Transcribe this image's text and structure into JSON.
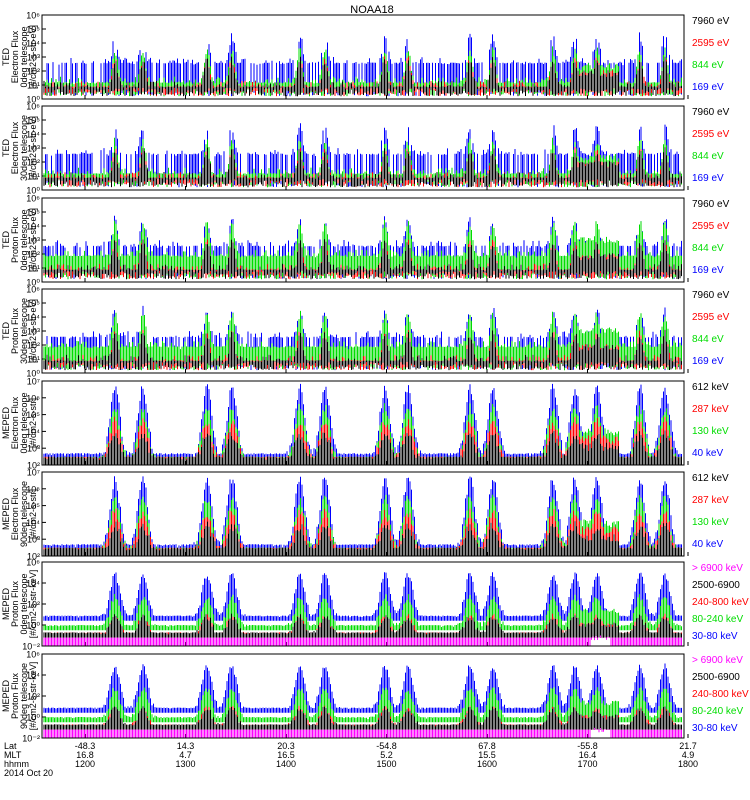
{
  "title": "NOAA18",
  "chart_data": [
    {
      "type": "line",
      "id": "ted-e-0",
      "ylabel": [
        "TED",
        "Electron Flux",
        "0deg telescope",
        "[#/cm2-s-str-eV]"
      ],
      "y_ticks": [
        "10⁰",
        "10¹",
        "10²",
        "10³",
        "10⁴",
        "10⁵",
        "10⁶"
      ],
      "ylim": [
        0,
        6
      ],
      "y_scale": "log",
      "legend": [
        {
          "label": "7960 eV",
          "color": "#000000"
        },
        {
          "label": "2595 eV",
          "color": "#ff0000"
        },
        {
          "label": "844 eV",
          "color": "#00dd00"
        },
        {
          "label": "169 eV",
          "color": "#0000ff"
        }
      ]
    },
    {
      "type": "line",
      "id": "ted-e-30",
      "ylabel": [
        "TED",
        "Electron Flux",
        "30deg telescope",
        "[#/cm2-s-str-eV]"
      ],
      "y_ticks": [
        "10⁰",
        "10¹",
        "10²",
        "10³",
        "10⁴",
        "10⁵",
        "10⁶"
      ],
      "ylim": [
        0,
        6
      ],
      "y_scale": "log",
      "legend": [
        {
          "label": "7960 eV",
          "color": "#000000"
        },
        {
          "label": "2595 eV",
          "color": "#ff0000"
        },
        {
          "label": "844 eV",
          "color": "#00dd00"
        },
        {
          "label": "169 eV",
          "color": "#0000ff"
        }
      ]
    },
    {
      "type": "line",
      "id": "ted-p-0",
      "ylabel": [
        "TED",
        "Proton Flux",
        "0deg telescope",
        "[#/cm2-s-str-eV]"
      ],
      "y_ticks": [
        "10⁰",
        "10¹",
        "10²",
        "10³",
        "10⁴",
        "10⁵",
        "10⁶"
      ],
      "ylim": [
        0,
        6
      ],
      "y_scale": "log",
      "legend": [
        {
          "label": "7960 eV",
          "color": "#000000"
        },
        {
          "label": "2595 eV",
          "color": "#ff0000"
        },
        {
          "label": "844 eV",
          "color": "#00dd00"
        },
        {
          "label": "169 eV",
          "color": "#0000ff"
        }
      ]
    },
    {
      "type": "line",
      "id": "ted-p-30",
      "ylabel": [
        "TED",
        "Proton Flux",
        "30deg telescope",
        "[#/cm2-s-str-eV]"
      ],
      "y_ticks": [
        "10⁰",
        "10¹",
        "10²",
        "10³",
        "10⁴",
        "10⁵",
        "10⁶"
      ],
      "ylim": [
        0,
        6
      ],
      "y_scale": "log",
      "legend": [
        {
          "label": "7960 eV",
          "color": "#000000"
        },
        {
          "label": "2595 eV",
          "color": "#ff0000"
        },
        {
          "label": "844 eV",
          "color": "#00dd00"
        },
        {
          "label": "169 eV",
          "color": "#0000ff"
        }
      ]
    },
    {
      "type": "line",
      "id": "meped-e-0",
      "ylabel": [
        "MEPED",
        "Electron Flux",
        "0deg telescope",
        "[#/cm2-s-str]"
      ],
      "y_ticks": [
        "10²",
        "10³",
        "10⁴",
        "10⁵",
        "10⁶",
        "10⁷"
      ],
      "ylim": [
        2,
        7
      ],
      "y_scale": "log",
      "legend": [
        {
          "label": "612 keV",
          "color": "#000000"
        },
        {
          "label": "287 keV",
          "color": "#ff0000"
        },
        {
          "label": "130 keV",
          "color": "#00dd00"
        },
        {
          "label": "40 keV",
          "color": "#0000ff"
        }
      ]
    },
    {
      "type": "line",
      "id": "meped-e-90",
      "ylabel": [
        "MEPED",
        "Electron Flux",
        "90deg telescope",
        "[#/cm2-s-str]"
      ],
      "y_ticks": [
        "10²",
        "10³",
        "10⁴",
        "10⁵",
        "10⁶",
        "10⁷"
      ],
      "ylim": [
        2,
        7
      ],
      "y_scale": "log",
      "legend": [
        {
          "label": "612 keV",
          "color": "#000000"
        },
        {
          "label": "287 keV",
          "color": "#ff0000"
        },
        {
          "label": "130 keV",
          "color": "#00dd00"
        },
        {
          "label": "40 keV",
          "color": "#0000ff"
        }
      ]
    },
    {
      "type": "line",
      "id": "meped-p-0",
      "ylabel": [
        "MEPED",
        "Proton Flux",
        "0deg telescope",
        "[#/cm2-s-str-keV]"
      ],
      "y_ticks": [
        "10⁻²",
        "10⁰",
        "10²",
        "10⁴",
        "10⁶"
      ],
      "ylim": [
        -2,
        6
      ],
      "y_scale": "log",
      "legend": [
        {
          "label": "> 6900 keV",
          "color": "#ff00ff"
        },
        {
          "label": "2500-6900",
          "color": "#000000"
        },
        {
          "label": "240-800 keV",
          "color": "#ff0000"
        },
        {
          "label": "80-240 keV",
          "color": "#00dd00"
        },
        {
          "label": "30-80 keV",
          "color": "#0000ff"
        }
      ]
    },
    {
      "type": "line",
      "id": "meped-p-90",
      "ylabel": [
        "MEPED",
        "Proton Flux",
        "90deg telescope",
        "[#/cm2-s-str-keV]"
      ],
      "y_ticks": [
        "10⁻²",
        "10⁰",
        "10²",
        "10⁴",
        "10⁶"
      ],
      "ylim": [
        -2,
        6
      ],
      "y_scale": "log",
      "legend": [
        {
          "label": "> 6900 keV",
          "color": "#ff00ff"
        },
        {
          "label": "2500-6900",
          "color": "#000000"
        },
        {
          "label": "240-800 keV",
          "color": "#ff0000"
        },
        {
          "label": "80-240 keV",
          "color": "#00dd00"
        },
        {
          "label": "30-80 keV",
          "color": "#0000ff"
        }
      ]
    }
  ],
  "x_axis": {
    "row_labels": [
      "Lat",
      "MLT",
      "hhmm"
    ],
    "ticks": [
      {
        "lat": "-48.3",
        "mlt": "16.8",
        "hhmm": "1200"
      },
      {
        "lat": "14.3",
        "mlt": "4.7",
        "hhmm": "1300"
      },
      {
        "lat": "20.3",
        "mlt": "16.5",
        "hhmm": "1400"
      },
      {
        "lat": "-54.8",
        "mlt": "5.2",
        "hhmm": "1500"
      },
      {
        "lat": "67.8",
        "mlt": "15.5",
        "hhmm": "1600"
      },
      {
        "lat": "-55.8",
        "mlt": "16.4",
        "hhmm": "1700"
      },
      {
        "lat": "21.7",
        "mlt": "4.9",
        "hhmm": "1800"
      }
    ],
    "date": "2014 Oct 20"
  }
}
